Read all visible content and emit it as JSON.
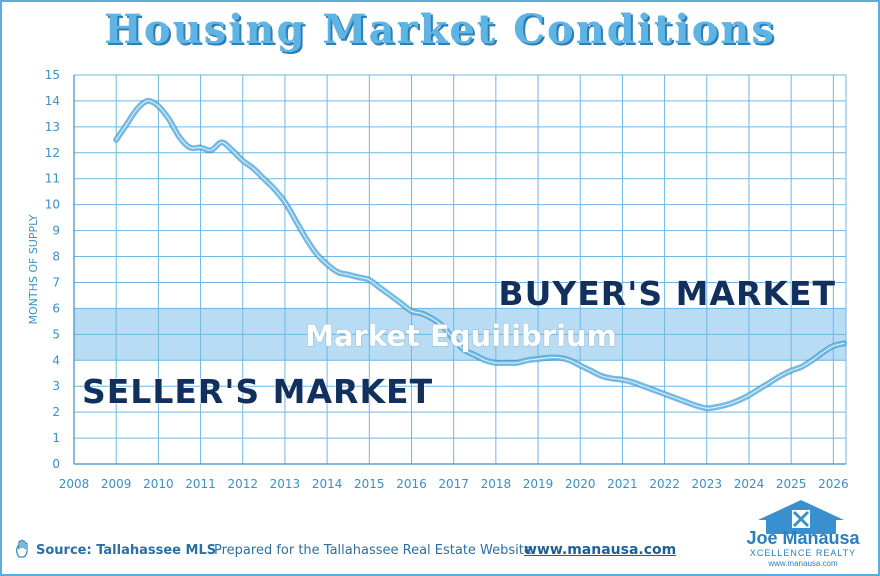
{
  "title": "Housing Market Conditions",
  "colors": {
    "title": "#5fb4e3",
    "grid": "#6fb7e3",
    "band": "#aad6f2",
    "line": "#6cbcea",
    "region_text": "#12305e",
    "equilibrium_text": "#ffffff"
  },
  "chart_data": {
    "type": "line",
    "ylabel": "MONTHS OF SUPPLY",
    "xlabel": "",
    "xlim": [
      2008,
      2026.3
    ],
    "ylim": [
      0,
      15
    ],
    "x_ticks": [
      2008,
      2009,
      2010,
      2011,
      2012,
      2013,
      2014,
      2015,
      2016,
      2017,
      2018,
      2019,
      2020,
      2021,
      2022,
      2023,
      2024,
      2025,
      2026
    ],
    "y_ticks": [
      0,
      1,
      2,
      3,
      4,
      5,
      6,
      7,
      8,
      9,
      10,
      11,
      12,
      13,
      14,
      15
    ],
    "grid": true,
    "equilibrium_band": [
      4,
      6
    ],
    "annotations": {
      "buyers": "BUYER'S MARKET",
      "equilibrium": "Market Equilibrium",
      "sellers": "SELLER'S MARKET"
    },
    "series": [
      {
        "x": [
          2009.0,
          2009.25,
          2009.5,
          2009.75,
          2010.0,
          2010.25,
          2010.5,
          2010.75,
          2011.0,
          2011.25,
          2011.5,
          2011.75,
          2012.0,
          2012.25,
          2012.5,
          2012.75,
          2013.0,
          2013.25,
          2013.5,
          2013.75,
          2014.0,
          2014.25,
          2014.5,
          2014.75,
          2015.0,
          2015.25,
          2015.5,
          2015.75,
          2016.0,
          2016.25,
          2016.5,
          2016.75,
          2017.0,
          2017.25,
          2017.5,
          2017.75,
          2018.0,
          2018.25,
          2018.5,
          2018.75,
          2019.0,
          2019.25,
          2019.5,
          2019.75,
          2020.0,
          2020.25,
          2020.5,
          2020.75,
          2021.0,
          2021.25,
          2021.5,
          2021.75,
          2022.0,
          2022.25,
          2022.5,
          2022.75,
          2023.0,
          2023.25,
          2023.5,
          2023.75,
          2024.0,
          2024.25,
          2024.5,
          2024.75,
          2025.0,
          2025.25,
          2025.5,
          2025.75,
          2026.0,
          2026.25
        ],
        "y": [
          12.5,
          13.1,
          13.7,
          14.0,
          13.8,
          13.3,
          12.6,
          12.2,
          12.2,
          12.1,
          12.4,
          12.1,
          11.7,
          11.4,
          11.0,
          10.6,
          10.1,
          9.4,
          8.7,
          8.1,
          7.7,
          7.4,
          7.3,
          7.2,
          7.1,
          6.8,
          6.5,
          6.2,
          5.9,
          5.8,
          5.6,
          5.3,
          4.8,
          4.4,
          4.2,
          4.0,
          3.9,
          3.9,
          3.9,
          4.0,
          4.05,
          4.1,
          4.1,
          4.0,
          3.8,
          3.6,
          3.4,
          3.3,
          3.25,
          3.15,
          3.0,
          2.85,
          2.7,
          2.55,
          2.4,
          2.25,
          2.15,
          2.2,
          2.3,
          2.45,
          2.65,
          2.9,
          3.15,
          3.4,
          3.6,
          3.75,
          4.0,
          4.3,
          4.55,
          4.65
        ]
      }
    ]
  },
  "footer": {
    "source": "Source: Tallahassee MLS",
    "prepared": "Prepared for the Tallahassee Real Estate Website",
    "url": "www.manausa.com"
  },
  "logo": {
    "name": "Joe Manausa",
    "sub": "XCELLENCE REALTY",
    "url": "www.manausa.com"
  },
  "icons": [
    "hand-icon",
    "house-icon"
  ]
}
